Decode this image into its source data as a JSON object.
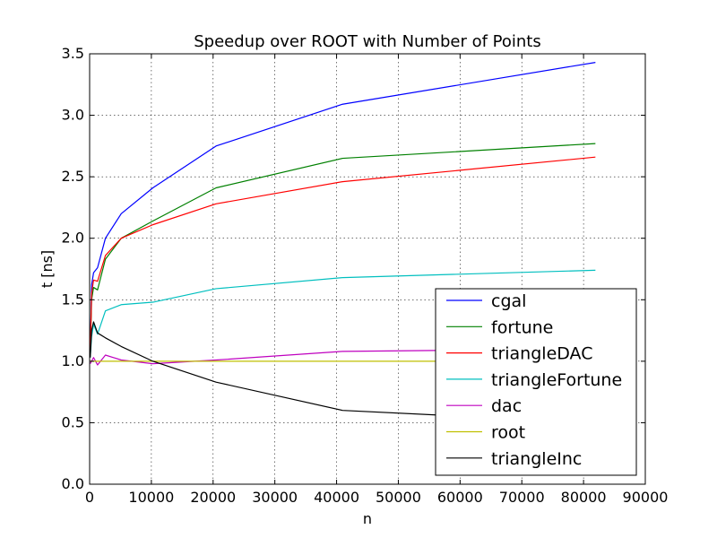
{
  "chart_data": {
    "type": "line",
    "title": "Speedup over ROOT with Number of Points",
    "xlabel": "n",
    "ylabel": "t [ns]",
    "xlim": [
      0,
      90000
    ],
    "ylim": [
      0.0,
      3.5
    ],
    "xticks": [
      0,
      10000,
      20000,
      30000,
      40000,
      50000,
      60000,
      70000,
      80000,
      90000
    ],
    "xtick_labels": [
      "0",
      "10000",
      "20000",
      "30000",
      "40000",
      "50000",
      "60000",
      "70000",
      "80000",
      "90000"
    ],
    "yticks": [
      0.0,
      0.5,
      1.0,
      1.5,
      2.0,
      2.5,
      3.0,
      3.5
    ],
    "ytick_labels": [
      "0.0",
      "0.5",
      "1.0",
      "1.5",
      "2.0",
      "2.5",
      "3.0",
      "3.5"
    ],
    "grid": true,
    "legend_position": "bottom-right",
    "series": [
      {
        "name": "cgal",
        "color": "#0000ff",
        "x": [
          100,
          320,
          640,
          1280,
          2560,
          5120,
          10240,
          20480,
          40960,
          81920
        ],
        "y": [
          1.05,
          1.62,
          1.72,
          1.76,
          2.0,
          2.2,
          2.41,
          2.75,
          3.09,
          3.43
        ]
      },
      {
        "name": "fortune",
        "color": "#008000",
        "x": [
          100,
          320,
          640,
          1280,
          2560,
          5120,
          10240,
          20480,
          40960,
          81920
        ],
        "y": [
          1.05,
          1.5,
          1.6,
          1.58,
          1.83,
          2.0,
          2.14,
          2.41,
          2.65,
          2.77
        ]
      },
      {
        "name": "triangleDAC",
        "color": "#ff0000",
        "x": [
          100,
          320,
          640,
          1280,
          2560,
          5120,
          10240,
          20480,
          40960,
          81920
        ],
        "y": [
          1.05,
          1.55,
          1.66,
          1.65,
          1.86,
          2.0,
          2.11,
          2.28,
          2.46,
          2.66
        ]
      },
      {
        "name": "triangleFortune",
        "color": "#00bfbf",
        "x": [
          100,
          320,
          640,
          1280,
          2560,
          5120,
          10240,
          20480,
          40960,
          81920
        ],
        "y": [
          1.03,
          1.2,
          1.3,
          1.22,
          1.41,
          1.46,
          1.48,
          1.59,
          1.68,
          1.74
        ]
      },
      {
        "name": "dac",
        "color": "#bf00bf",
        "x": [
          100,
          320,
          640,
          1280,
          2560,
          5120,
          10240,
          20480,
          40960,
          81920
        ],
        "y": [
          0.98,
          1.0,
          1.03,
          0.97,
          1.05,
          1.01,
          0.98,
          1.01,
          1.08,
          1.1
        ]
      },
      {
        "name": "root",
        "color": "#bfbf00",
        "x": [
          100,
          320,
          640,
          1280,
          2560,
          5120,
          10240,
          20480,
          40960,
          81920
        ],
        "y": [
          1.0,
          1.0,
          1.0,
          1.0,
          1.0,
          1.0,
          1.0,
          1.0,
          1.0,
          1.0
        ]
      },
      {
        "name": "triangleInc",
        "color": "#000000",
        "x": [
          100,
          320,
          640,
          1280,
          2560,
          5120,
          10240,
          20480,
          40960,
          81920
        ],
        "y": [
          1.03,
          1.25,
          1.32,
          1.23,
          1.19,
          1.12,
          1.0,
          0.83,
          0.6,
          0.5
        ]
      }
    ]
  }
}
